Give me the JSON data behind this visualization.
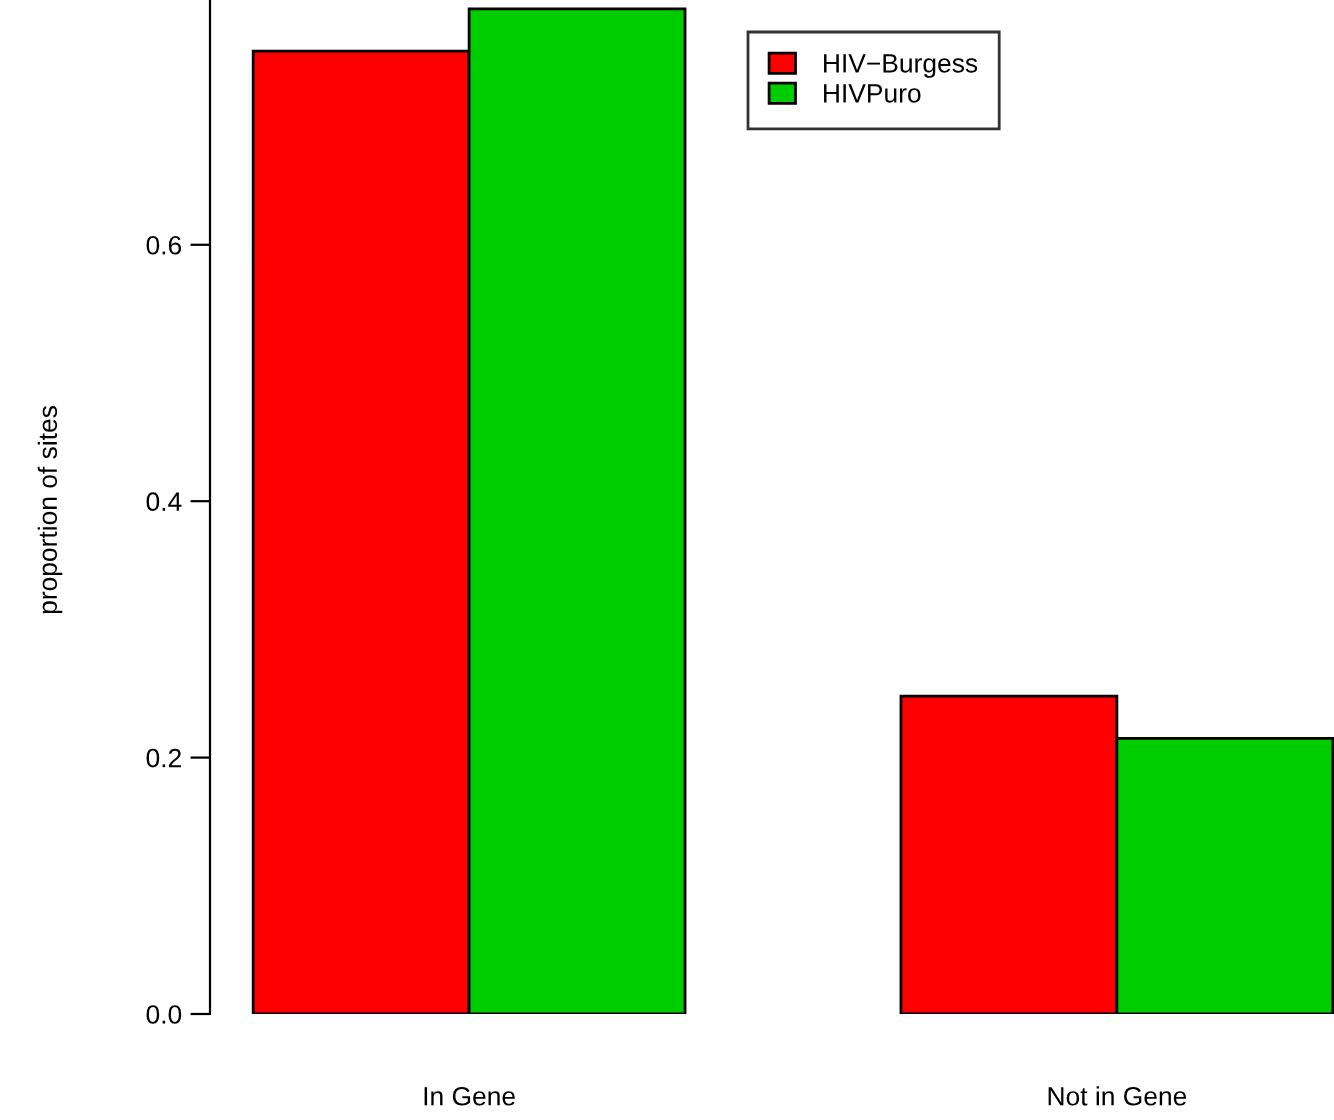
{
  "chart_data": {
    "type": "bar",
    "ylabel": "proportion of sites",
    "categories": [
      "In Gene",
      "Not in Gene"
    ],
    "series": [
      {
        "name": "HIV−Burgess",
        "color": "#ff0000",
        "values": [
          0.751,
          0.248
        ]
      },
      {
        "name": "HIVPuro",
        "color": "#00cd00",
        "values": [
          0.784,
          0.215
        ]
      }
    ],
    "ylim": [
      0,
      0.79
    ],
    "yticks": [
      {
        "value": 0,
        "label": "0.0"
      },
      0.2,
      0.4,
      0.6
    ],
    "grid": false,
    "legend": "top right"
  }
}
